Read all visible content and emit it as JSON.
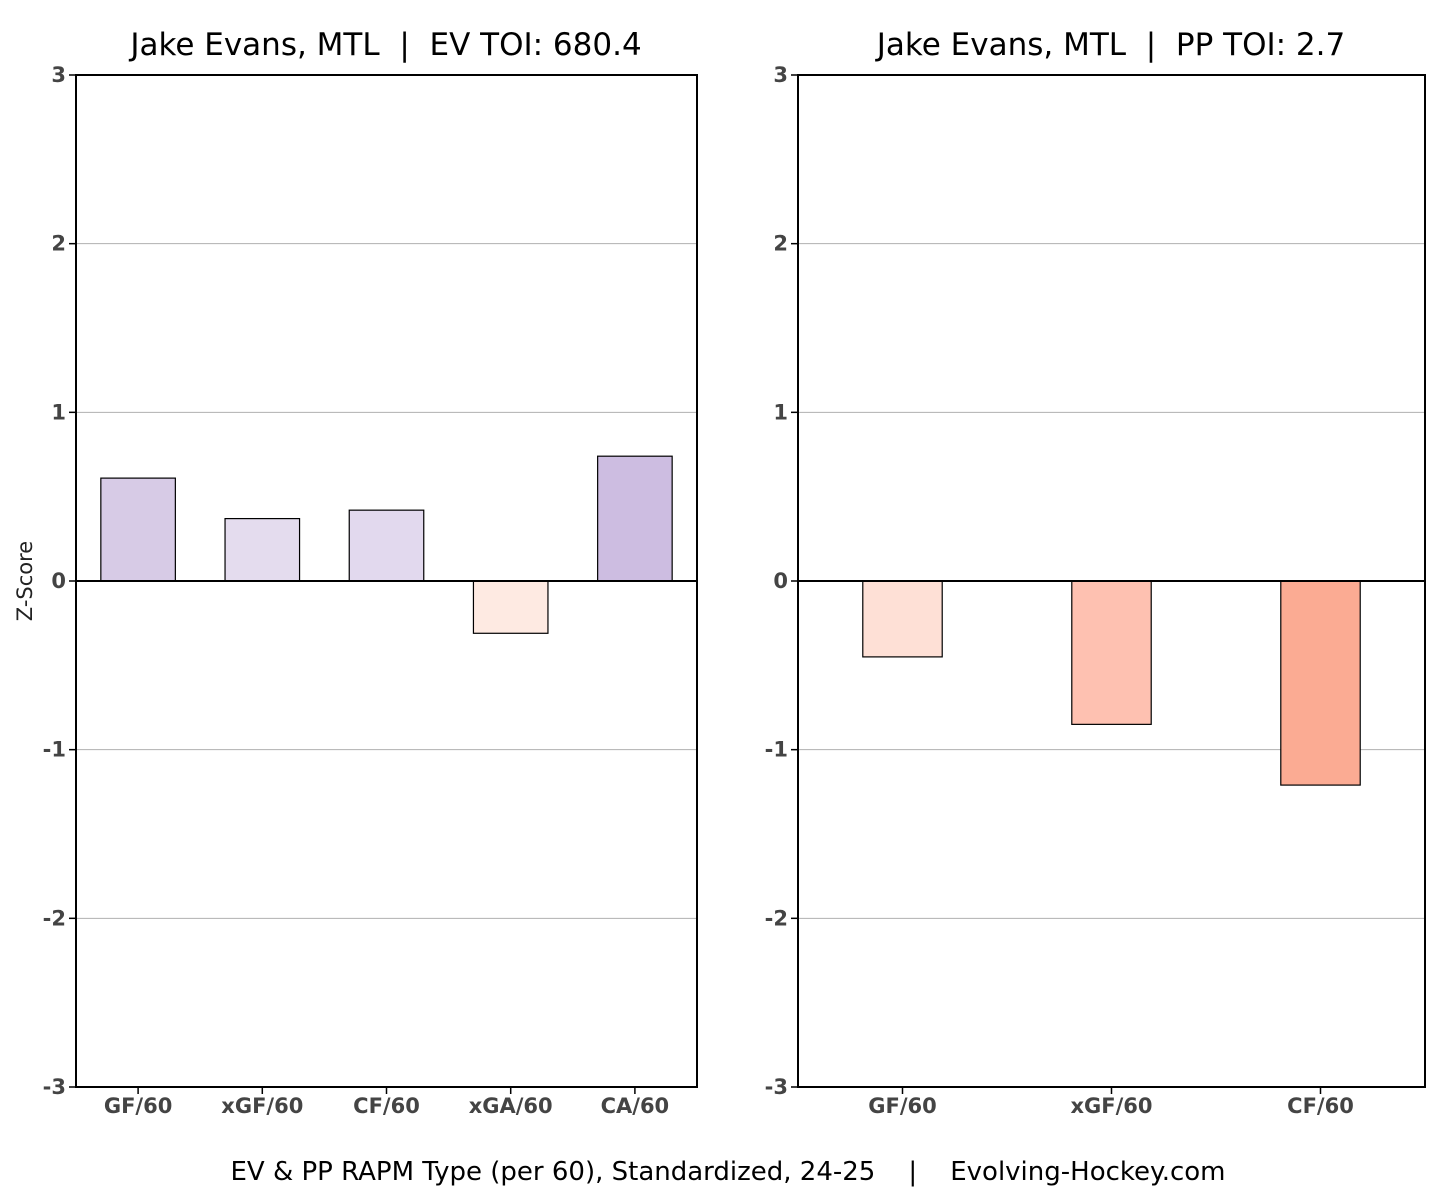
{
  "footer": "EV & PP RAPM Type (per 60), Standardized, 24-25    |    Evolving-Hockey.com",
  "chart_data": [
    {
      "type": "bar",
      "title": "Jake Evans, MTL  |  EV TOI: 680.4",
      "ylabel": "Z-Score",
      "ylim": [
        -3,
        3
      ],
      "yticks": [
        -3,
        -2,
        -1,
        0,
        1,
        2,
        3
      ],
      "grid": true,
      "categories": [
        "GF/60",
        "xGF/60",
        "CF/60",
        "xGA/60",
        "CA/60"
      ],
      "values": [
        0.61,
        0.37,
        0.42,
        -0.31,
        0.74
      ],
      "colors": [
        "#d7cbe6",
        "#e4dcee",
        "#e2d9ee",
        "#feeae2",
        "#cdbde1"
      ]
    },
    {
      "type": "bar",
      "title": "Jake Evans, MTL  |  PP TOI: 2.7",
      "ylabel": "",
      "ylim": [
        -3,
        3
      ],
      "yticks": [
        -3,
        -2,
        -1,
        0,
        1,
        2,
        3
      ],
      "grid": true,
      "categories": [
        "GF/60",
        "xGF/60",
        "CF/60"
      ],
      "values": [
        -0.45,
        -0.85,
        -1.21
      ],
      "colors": [
        "#fee0d6",
        "#fec1b1",
        "#fbab93"
      ]
    }
  ]
}
